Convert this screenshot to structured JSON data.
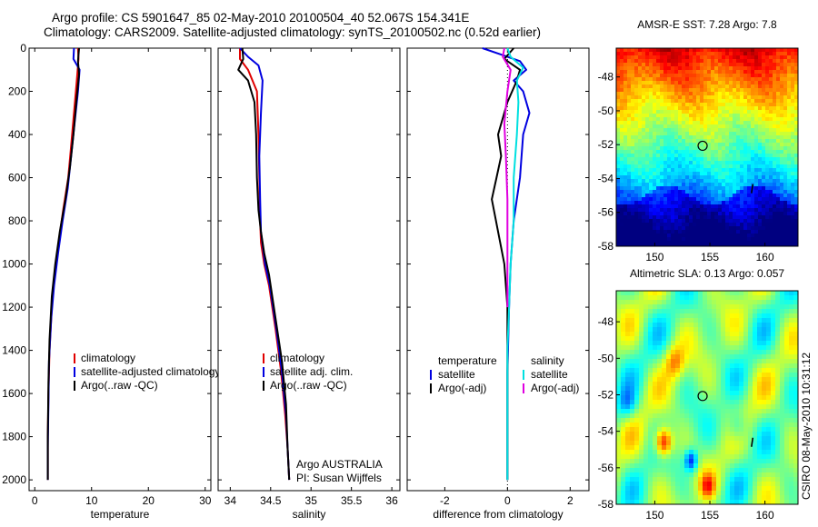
{
  "header": {
    "line1": "Argo profile: CS 5901647_85 02-May-2010 20100504_40 52.067S 154.341E",
    "line2": "Climatology: CARS2009. Satellite-adjusted climatology: synTS_20100502.nc (0.52d earlier)"
  },
  "side_label": "CSIRO 08-May-2010 10:31:12",
  "colors": {
    "climatology": "#e00000",
    "satellite": "#0000e0",
    "argo": "#000000",
    "satellite_salinity": "#00e0e0",
    "argo_adj_salinity": "#e000e0"
  },
  "chart_data": [
    {
      "type": "line",
      "id": "temperature-profile",
      "xlabel": "temperature",
      "xlim": [
        -1,
        31
      ],
      "ylim": [
        0,
        2050
      ],
      "y_reversed": true,
      "x_ticks": [
        0,
        10,
        20,
        30
      ],
      "y_ticks": [
        0,
        200,
        400,
        600,
        800,
        1000,
        1200,
        1400,
        1600,
        1800,
        2000
      ],
      "legend": [
        "climatology",
        "satellite-adjusted climatology",
        "Argo(..raw -QC)"
      ],
      "legend_placement": "lower-right",
      "series": [
        {
          "name": "climatology",
          "color": "#e00000",
          "x": [
            7.6,
            7.7,
            7.4,
            6.9,
            6.4,
            5.9,
            5.0,
            4.2,
            3.5,
            3.0,
            2.6,
            2.4,
            2.3,
            2.3
          ],
          "y": [
            0,
            50,
            150,
            300,
            450,
            600,
            750,
            900,
            1050,
            1200,
            1400,
            1600,
            1800,
            2000
          ]
        },
        {
          "name": "satellite-adjusted climatology",
          "color": "#0000e0",
          "x": [
            6.9,
            6.8,
            7.9,
            7.6,
            7.0,
            6.4,
            5.8,
            4.9,
            4.1,
            3.4,
            2.9,
            2.5,
            2.4,
            2.3,
            2.3
          ],
          "y": [
            0,
            50,
            100,
            200,
            350,
            500,
            650,
            800,
            950,
            1100,
            1250,
            1450,
            1650,
            1850,
            2000
          ]
        },
        {
          "name": "Argo(..raw -QC)",
          "color": "#000000",
          "x": [
            7.8,
            7.6,
            7.8,
            7.3,
            6.8,
            6.2,
            5.4,
            4.4,
            3.6,
            3.0,
            2.6,
            2.4,
            2.3,
            2.3
          ],
          "y": [
            0,
            60,
            120,
            250,
            400,
            550,
            700,
            850,
            1000,
            1150,
            1350,
            1550,
            1800,
            2000
          ]
        }
      ]
    },
    {
      "type": "line",
      "id": "salinity-profile",
      "xlabel": "salinity",
      "xlim": [
        33.85,
        36.1
      ],
      "ylim": [
        0,
        2050
      ],
      "y_reversed": true,
      "x_ticks": [
        34,
        34.5,
        35,
        35.5,
        36
      ],
      "legend": [
        "climatology",
        "satellite adj. clim.",
        "Argo(..raw -QC)"
      ],
      "legend_placement": "lower-right",
      "annotations": [
        "Argo AUSTRALIA",
        "PI: Susan Wijffels"
      ],
      "series": [
        {
          "name": "climatology",
          "color": "#e00000",
          "x": [
            34.12,
            34.12,
            34.22,
            34.33,
            34.35,
            34.36,
            34.37,
            34.38,
            34.42,
            34.48,
            34.56,
            34.63,
            34.68,
            34.71,
            34.73
          ],
          "y": [
            0,
            50,
            100,
            200,
            400,
            600,
            800,
            900,
            1000,
            1100,
            1300,
            1500,
            1700,
            1850,
            2000
          ]
        },
        {
          "name": "satellite adj. clim.",
          "color": "#0000e0",
          "x": [
            34.12,
            34.22,
            34.35,
            34.4,
            34.38,
            34.36,
            34.37,
            34.38,
            34.43,
            34.49,
            34.57,
            34.64,
            34.69,
            34.71,
            34.73
          ],
          "y": [
            0,
            40,
            80,
            150,
            300,
            500,
            700,
            850,
            1000,
            1100,
            1300,
            1500,
            1700,
            1850,
            2000
          ]
        },
        {
          "name": "Argo(..raw -QC)",
          "color": "#000000",
          "x": [
            34.15,
            34.16,
            34.1,
            34.22,
            34.3,
            34.32,
            34.33,
            34.35,
            34.38,
            34.42,
            34.48,
            34.56,
            34.64,
            34.69,
            34.71,
            34.73
          ],
          "y": [
            0,
            50,
            100,
            150,
            250,
            400,
            600,
            750,
            850,
            950,
            1050,
            1250,
            1450,
            1650,
            1850,
            2000
          ]
        }
      ]
    },
    {
      "type": "line",
      "id": "difference-from-climatology",
      "xlabel": "difference from climatology",
      "xlim": [
        -3.2,
        2.6
      ],
      "ylim": [
        0,
        2050
      ],
      "y_reversed": true,
      "x_ticks": [
        -2,
        0,
        2
      ],
      "legend_groups": [
        {
          "title": "temperature",
          "items": [
            "satellite",
            "Argo(-adj)"
          ]
        },
        {
          "title": "salinity",
          "items": [
            "satellite",
            "Argo(-adj)"
          ]
        }
      ],
      "legend_placement": "lower-right",
      "series": [
        {
          "name": "temperature satellite",
          "color": "#0000e0",
          "x": [
            -0.8,
            -0.2,
            0.4,
            0.6,
            0.2,
            0.5,
            0.7,
            0.5,
            0.4,
            0.2,
            0.1,
            0.05,
            0.0,
            0.0,
            0.0
          ],
          "y": [
            0,
            30,
            60,
            100,
            150,
            200,
            300,
            400,
            600,
            800,
            1000,
            1200,
            1500,
            1800,
            2000
          ]
        },
        {
          "name": "temperature Argo(-adj)",
          "color": "#000000",
          "x": [
            0.2,
            -0.1,
            0.4,
            0.3,
            0.0,
            -0.3,
            -0.2,
            -0.35,
            -0.5,
            -0.3,
            -0.1,
            0.0,
            0.0,
            0.0,
            0.0
          ],
          "y": [
            0,
            50,
            100,
            150,
            250,
            400,
            500,
            600,
            700,
            850,
            1000,
            1200,
            1500,
            1800,
            2000
          ]
        },
        {
          "name": "salinity satellite",
          "color": "#00e0e0",
          "x": [
            0.0,
            0.1,
            0.5,
            0.3,
            0.35,
            0.3,
            0.2,
            0.2,
            0.1,
            0.05,
            0.0,
            0.0,
            0.0,
            0.0
          ],
          "y": [
            0,
            40,
            90,
            150,
            250,
            400,
            600,
            800,
            1000,
            1200,
            1400,
            1600,
            1800,
            2000
          ]
        },
        {
          "name": "salinity Argo(-adj)",
          "color": "#e000e0",
          "x": [
            -0.1,
            -0.15,
            0.1,
            0.0,
            -0.1,
            -0.05,
            0.0,
            0.0,
            0.0,
            0.0
          ],
          "y": [
            0,
            40,
            100,
            200,
            350,
            500,
            700,
            900,
            1100,
            1200
          ]
        }
      ]
    },
    {
      "type": "heatmap",
      "id": "amsr-sst-map",
      "title": "AMSR-E SST: 7.28 Argo: 7.8",
      "xlim": [
        146.5,
        163
      ],
      "ylim": [
        -58,
        -46.3
      ],
      "x_ticks": [
        150,
        155,
        160
      ],
      "y_ticks": [
        -48,
        -50,
        -52,
        -54,
        -56,
        -58
      ],
      "marker": {
        "lon": 154.341,
        "lat": -52.067
      },
      "track_mark": {
        "lon": 158.9,
        "lat": -54.6
      }
    },
    {
      "type": "heatmap",
      "id": "altimetric-sla-map",
      "title": "Altimetric SLA: 0.13 Argo: 0.057",
      "xlim": [
        146.5,
        163
      ],
      "ylim": [
        -58,
        -46.3
      ],
      "x_ticks": [
        150,
        155,
        160
      ],
      "y_ticks": [
        -48,
        -50,
        -52,
        -54,
        -56,
        -58
      ],
      "marker": {
        "lon": 154.341,
        "lat": -52.067
      },
      "track_mark": {
        "lon": 158.9,
        "lat": -54.6
      }
    }
  ]
}
